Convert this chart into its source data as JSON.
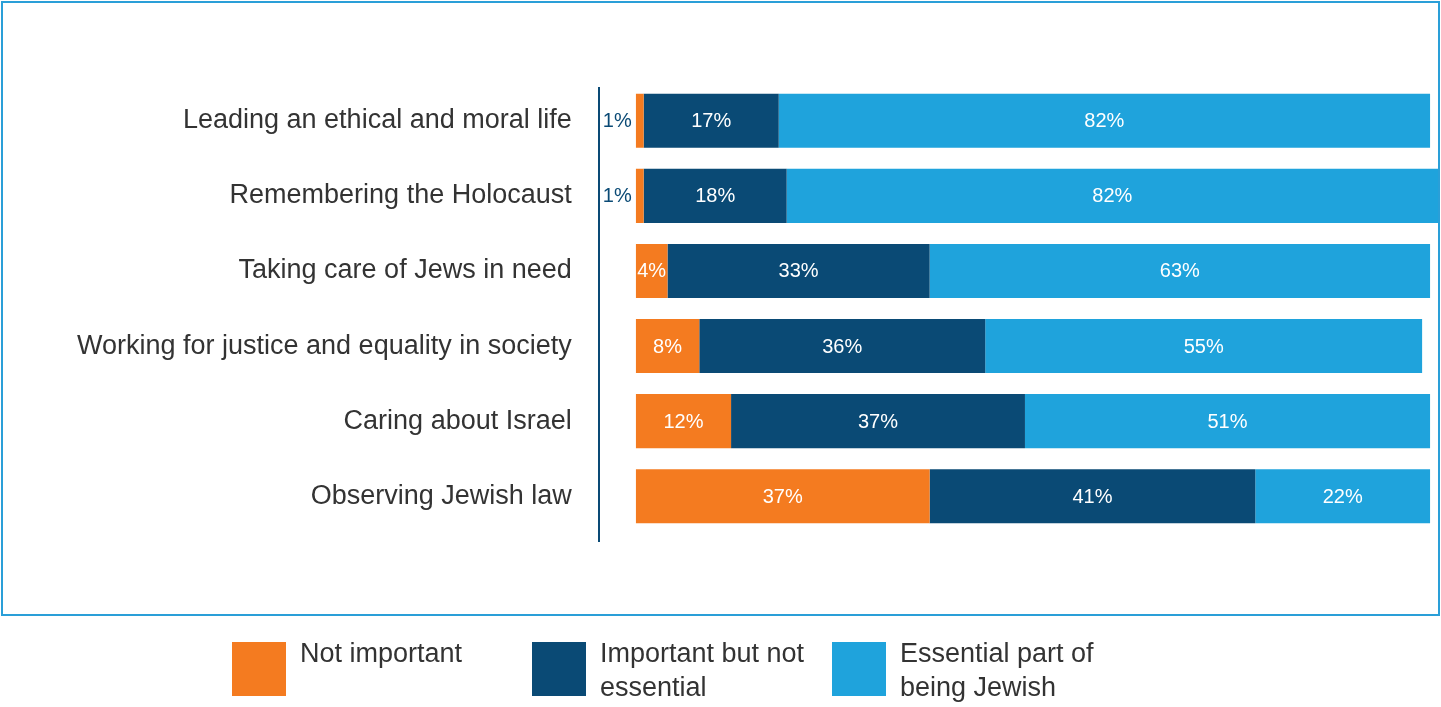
{
  "chart_data": {
    "type": "bar",
    "orientation": "horizontal",
    "stacked": true,
    "legend": "bottom",
    "grid": false,
    "tick_labels": "y",
    "categories": [
      "Leading an ethical and moral life",
      "Remembering the Holocaust",
      "Taking care of Jews in need",
      "Working for justice and equality in society",
      "Caring about Israel",
      "Observing Jewish law"
    ],
    "series": [
      {
        "name": "Not important",
        "color": "#f47b20",
        "values": [
          1,
          1,
          4,
          8,
          12,
          37
        ],
        "value_labels": [
          "1%",
          "1%",
          "4%",
          "8%",
          "12%",
          "37%"
        ]
      },
      {
        "name": "Important but not essential",
        "color": "#0a4a75",
        "values": [
          17,
          18,
          33,
          36,
          37,
          41
        ],
        "value_labels": [
          "17%",
          "18%",
          "33%",
          "36%",
          "37%",
          "41%"
        ]
      },
      {
        "name": "Essential part of being Jewish",
        "color": "#1fa3dc",
        "values": [
          82,
          82,
          63,
          55,
          51,
          22
        ],
        "value_labels": [
          "82%",
          "82%",
          "63%",
          "55%",
          "51%",
          "22%"
        ]
      }
    ]
  }
}
